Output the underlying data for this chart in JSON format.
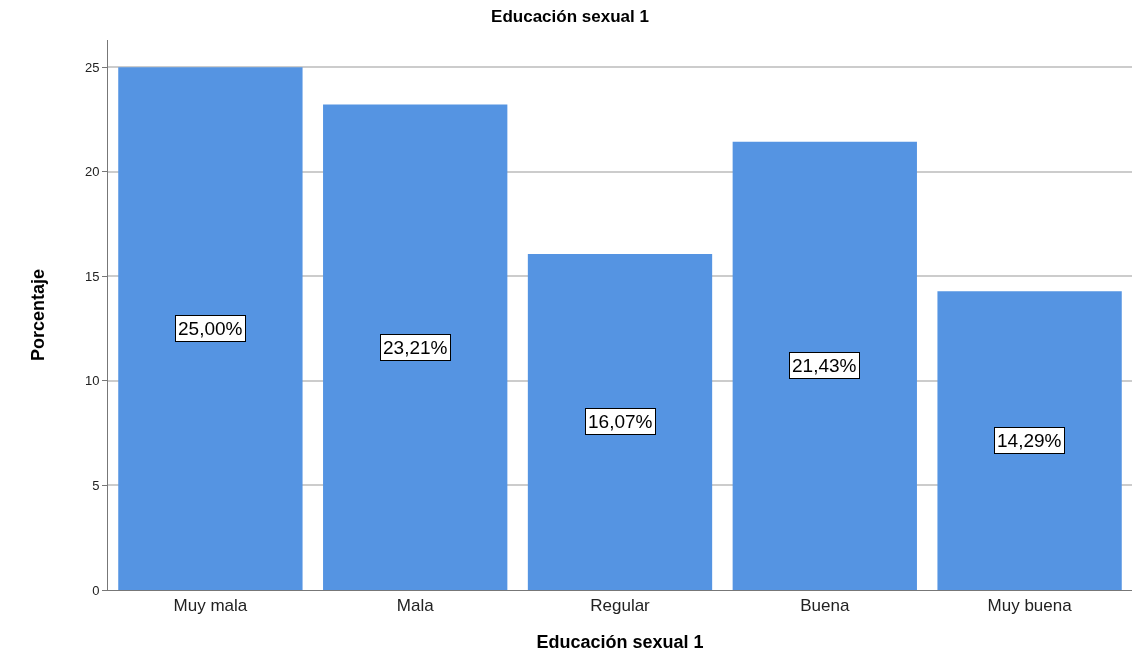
{
  "chart_data": {
    "type": "bar",
    "title": "Educación sexual 1",
    "xlabel": "Educación sexual 1",
    "ylabel": "Porcentaje",
    "categories": [
      "Muy mala",
      "Mala",
      "Regular",
      "Buena",
      "Muy buena"
    ],
    "values": [
      25.0,
      23.21,
      16.07,
      21.43,
      14.29
    ],
    "value_labels": [
      "25,00%",
      "23,21%",
      "16,07%",
      "21,43%",
      "14,29%"
    ],
    "color": "#5594e2",
    "ylim": [
      0,
      26.3
    ],
    "yticks": [
      0,
      5,
      10,
      15,
      20,
      25
    ],
    "grid": "y"
  }
}
